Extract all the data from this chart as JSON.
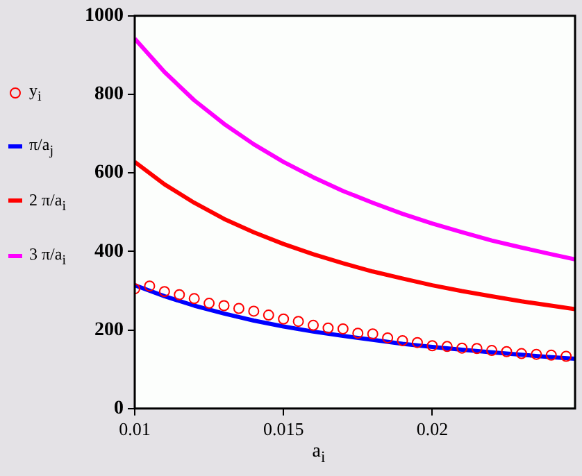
{
  "chart_data": {
    "type": "line",
    "xlabel": "a$_{i}$",
    "legend": "left",
    "grid": false,
    "xlim": [
      0.01,
      0.0248
    ],
    "xticks": [
      0.01,
      0.015,
      0.02
    ],
    "ylim": [
      0,
      1000
    ],
    "yticks": [
      0,
      200,
      400,
      600,
      800,
      1000
    ],
    "series": [
      {
        "name": "y$_{i}$",
        "type": "scatter",
        "marker": "circle",
        "color": "#ff0000",
        "x": [
          0.01,
          0.0105,
          0.011,
          0.0115,
          0.012,
          0.0125,
          0.013,
          0.0135,
          0.014,
          0.0145,
          0.015,
          0.0155,
          0.016,
          0.0165,
          0.017,
          0.0175,
          0.018,
          0.0185,
          0.019,
          0.0195,
          0.02,
          0.0205,
          0.021,
          0.0215,
          0.022,
          0.0225,
          0.023,
          0.0235,
          0.024,
          0.0245
        ],
        "values": [
          305,
          312,
          298,
          290,
          280,
          268,
          262,
          255,
          248,
          238,
          228,
          222,
          212,
          205,
          203,
          192,
          190,
          180,
          173,
          168,
          160,
          158,
          154,
          153,
          148,
          145,
          140,
          138,
          136,
          133
        ]
      },
      {
        "name": "π/a$_{j}$",
        "color": "#0000ff",
        "x": [
          0.01,
          0.011,
          0.012,
          0.013,
          0.014,
          0.015,
          0.016,
          0.017,
          0.018,
          0.019,
          0.02,
          0.021,
          0.022,
          0.023,
          0.024,
          0.0248
        ],
        "values": [
          314,
          286,
          262,
          242,
          224,
          209,
          196,
          185,
          175,
          165,
          157,
          150,
          143,
          137,
          131,
          127
        ]
      },
      {
        "name": "2 π/a$_{i}$",
        "color": "#ff0000",
        "x": [
          0.01,
          0.011,
          0.012,
          0.013,
          0.014,
          0.015,
          0.016,
          0.017,
          0.018,
          0.019,
          0.02,
          0.021,
          0.022,
          0.023,
          0.024,
          0.0248
        ],
        "values": [
          628,
          571,
          524,
          483,
          449,
          419,
          393,
          370,
          349,
          331,
          314,
          299,
          286,
          273,
          262,
          253
        ]
      },
      {
        "name": "3 π/a$_{i}$",
        "color": "#ff00ff",
        "x": [
          0.01,
          0.011,
          0.012,
          0.013,
          0.014,
          0.015,
          0.016,
          0.017,
          0.018,
          0.019,
          0.02,
          0.021,
          0.022,
          0.023,
          0.024,
          0.0248
        ],
        "values": [
          942,
          857,
          785,
          725,
          673,
          628,
          589,
          554,
          524,
          496,
          471,
          449,
          428,
          410,
          393,
          380
        ]
      }
    ]
  }
}
